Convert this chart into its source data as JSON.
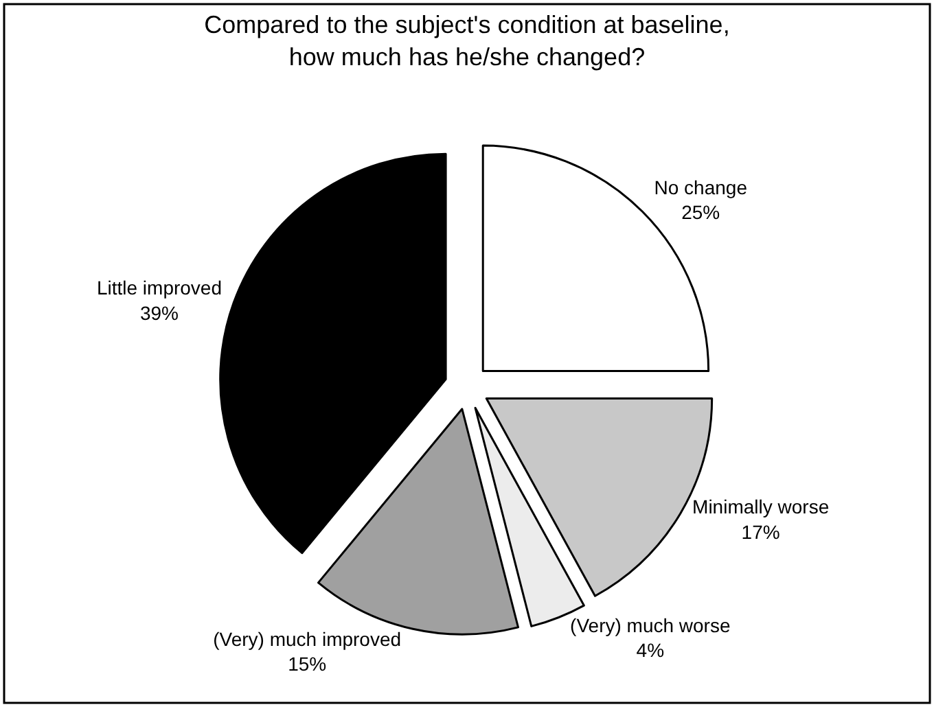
{
  "chart_data": {
    "type": "pie",
    "title": "Compared to the subject's condition at baseline,\nhow much has he/she changed?",
    "categories": [
      "No change",
      "Minimally worse",
      "(Very) much worse",
      "(Very) much improved",
      "Little improved"
    ],
    "values": [
      25,
      17,
      4,
      15,
      39
    ],
    "colors": [
      "#ffffff",
      "#c8c8c8",
      "#ececec",
      "#a0a0a0",
      "#000000"
    ],
    "value_labels": [
      "25%",
      "17%",
      "4%",
      "15%",
      "39%"
    ],
    "legend": false
  }
}
